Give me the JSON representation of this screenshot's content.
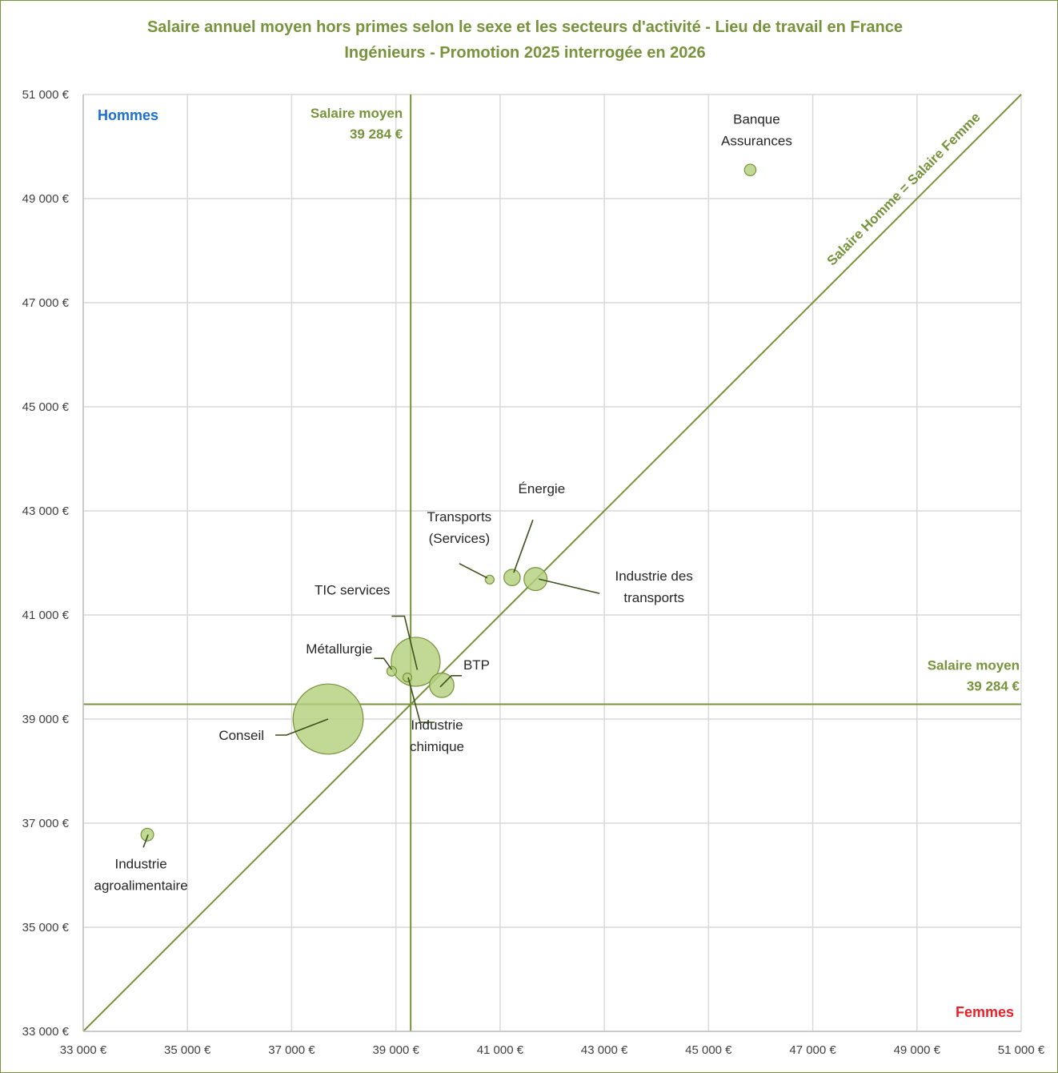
{
  "chart_data": {
    "type": "scatter",
    "title": "Salaire annuel moyen hors primes selon le sexe et les secteurs d'activité - Lieu de travail en France",
    "subtitle": "Ingénieurs - Promotion 2025 interrogée en 2026",
    "x_axis_name": "Femmes",
    "y_axis_name": "Hommes",
    "x_axis_color": "#e8202a",
    "y_axis_color": "#1a6fd1",
    "xlim": [
      33000,
      51000
    ],
    "ylim": [
      33000,
      51000
    ],
    "x_ticks": [
      33000,
      35000,
      37000,
      39000,
      41000,
      43000,
      45000,
      47000,
      49000,
      51000
    ],
    "y_ticks": [
      33000,
      35000,
      37000,
      39000,
      41000,
      43000,
      45000,
      47000,
      49000,
      51000
    ],
    "x_tick_labels": [
      "33 000 €",
      "35 000 €",
      "37 000 €",
      "39 000 €",
      "41 000 €",
      "43 000 €",
      "45 000 €",
      "47 000 €",
      "49 000 €",
      "51 000 €"
    ],
    "y_tick_labels": [
      "33 000 €",
      "35 000 €",
      "37 000 €",
      "39 000 €",
      "41 000 €",
      "43 000 €",
      "45 000 €",
      "47 000 €",
      "49 000 €",
      "51 000 €"
    ],
    "grid": true,
    "accent_color": "#77933c",
    "bubble_fill": "#b5cf7e",
    "diagonal_label": "Salaire Homme = Salaire Femme",
    "mean_salary": 39284,
    "mean_vertical": {
      "line1": "Salaire moyen",
      "line2": "39 284 €"
    },
    "mean_horizontal": {
      "line1": "Salaire moyen",
      "line2": "39 284 €"
    },
    "points": [
      {
        "label": [
          "Banque",
          "Assurances"
        ],
        "x": 45800,
        "y": 49550,
        "size": 1
      },
      {
        "label": [
          "Énergie"
        ],
        "x": 41230,
        "y": 41720,
        "size": 2
      },
      {
        "label": [
          "Transports",
          "(Services)"
        ],
        "x": 40800,
        "y": 41680,
        "size": 0.5
      },
      {
        "label": [
          "Industrie  des",
          "transports"
        ],
        "x": 41680,
        "y": 41690,
        "size": 4
      },
      {
        "label": [
          "TIC services"
        ],
        "x": 39380,
        "y": 40100,
        "size": 18
      },
      {
        "label": [
          "Métallurgie"
        ],
        "x": 38920,
        "y": 39920,
        "size": 0.7
      },
      {
        "label": [
          "BTP"
        ],
        "x": 39880,
        "y": 39650,
        "size": 4.5
      },
      {
        "label": [
          "Industrie",
          "chimique"
        ],
        "x": 39220,
        "y": 39800,
        "size": 0.5
      },
      {
        "label": [
          "Conseil"
        ],
        "x": 37700,
        "y": 39000,
        "size": 37
      },
      {
        "label": [
          "Industrie",
          "agroalimentaire"
        ],
        "x": 34230,
        "y": 36780,
        "size": 1.2
      }
    ]
  }
}
